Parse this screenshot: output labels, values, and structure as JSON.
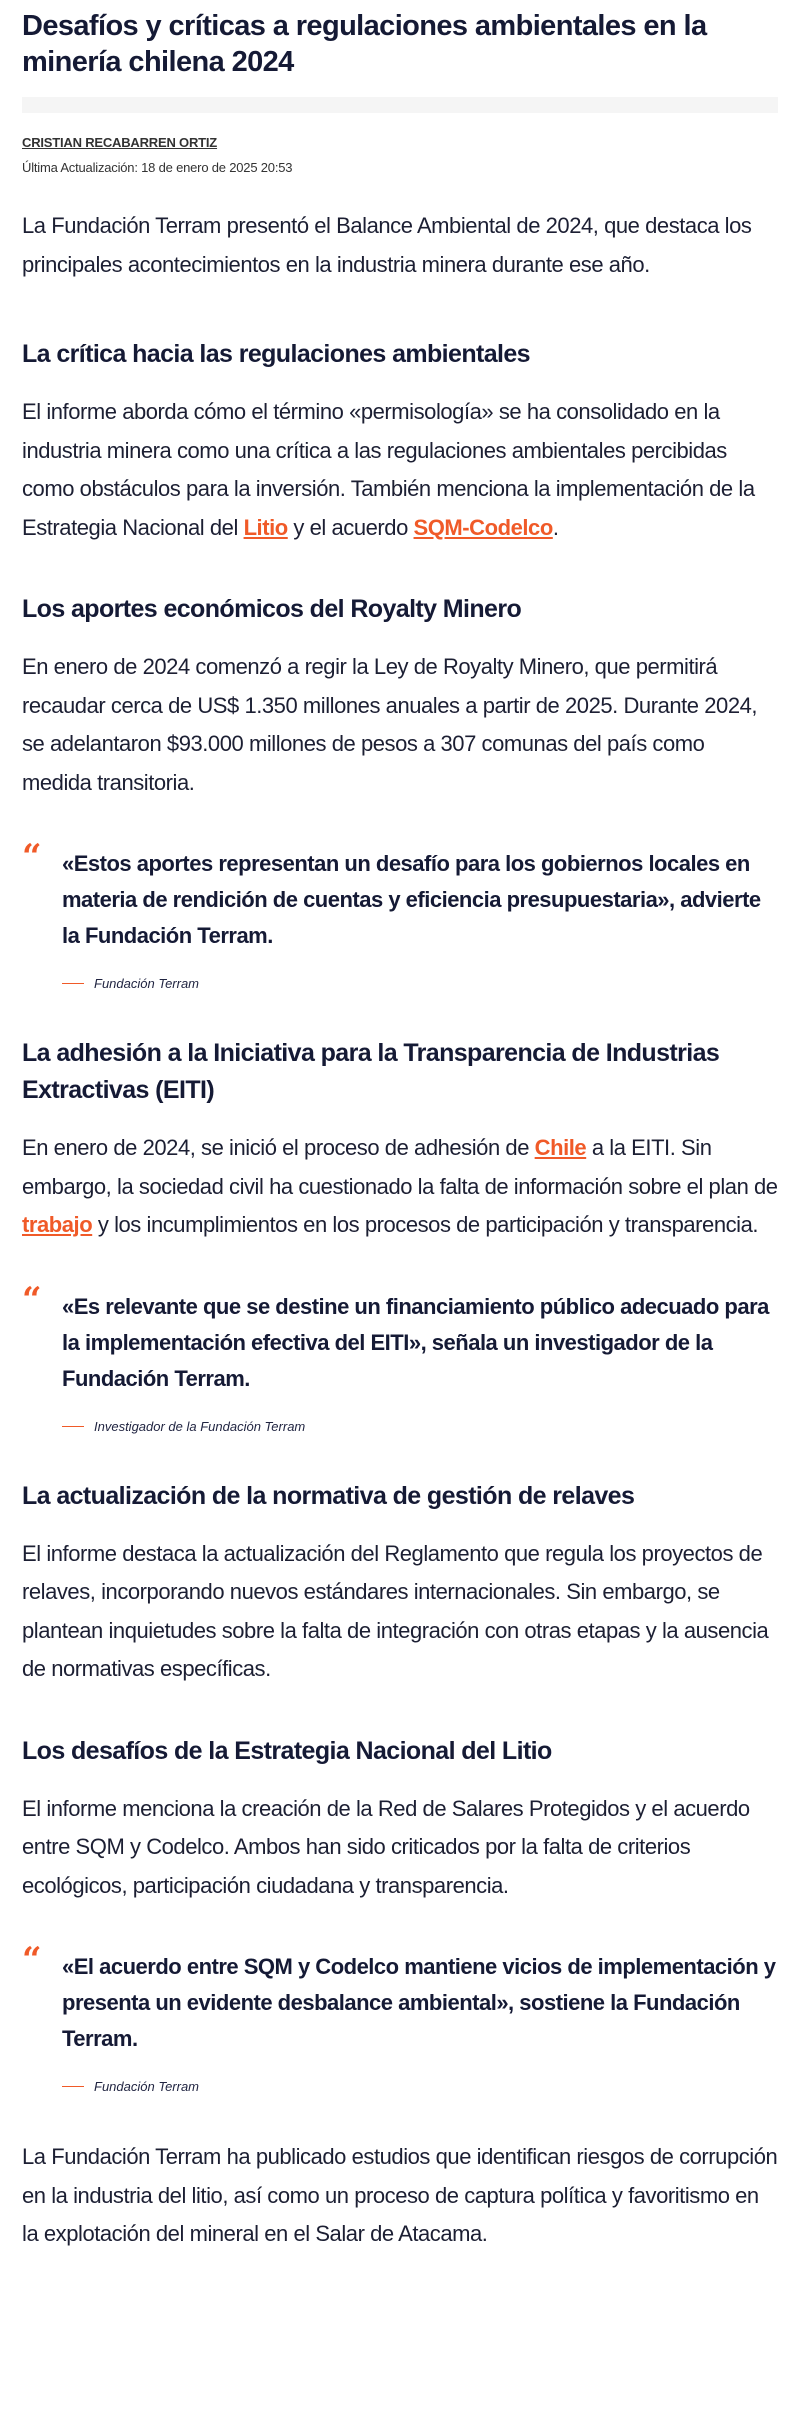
{
  "article": {
    "title": "Desafíos y críticas a regulaciones ambientales en la minería chilena 2024",
    "author": "CRISTIAN RECABARREN ORTIZ",
    "updated": "Última Actualización: 18 de enero de 2025 20:53",
    "intro": "La Fundación Terram presentó el Balance Ambiental de 2024, que destaca los principales acontecimientos en la industria minera durante ese año.",
    "s1": {
      "heading": "La crítica hacia las regulaciones ambientales",
      "p_a": "El informe aborda cómo el término «permisología» se ha consolidado en la industria minera como una crítica a las regulaciones ambientales percibidas como obstáculos para la inversión. También menciona la implementación de la Estrategia Nacional del ",
      "link1": "Litio",
      "p_b": " y el acuerdo ",
      "link2": "SQM-Codelco",
      "p_c": "."
    },
    "s2": {
      "heading": "Los aportes económicos del Royalty Minero",
      "p": "En enero de 2024 comenzó a regir la Ley de Royalty Minero, que permitirá recaudar cerca de US$ 1.350 millones anuales a partir de 2025. Durante 2024, se adelantaron $93.000 millones de pesos a 307 comunas del país como medida transitoria.",
      "quote": "«Estos aportes representan un desafío para los gobiernos locales en materia de rendición de cuentas y eficiencia presupuestaria», advierte la Fundación Terram.",
      "cite": "Fundación Terram"
    },
    "s3": {
      "heading": "La adhesión a la Iniciativa para la Transparencia de Industrias Extractivas (EITI)",
      "p_a": "En enero de 2024, se inició el proceso de adhesión de ",
      "link1": "Chile",
      "p_b": " a la EITI. Sin embargo, la sociedad civil ha cuestionado la falta de información sobre el plan de ",
      "link2": "trabajo",
      "p_c": " y los incumplimientos en los procesos de participación y transparencia.",
      "quote": "«Es relevante que se destine un financiamiento público adecuado para la implementación efectiva del EITI», señala un investigador de la Fundación Terram.",
      "cite": "Investigador de la Fundación Terram"
    },
    "s4": {
      "heading": "La actualización de la normativa de gestión de relaves",
      "p": "El informe destaca la actualización del Reglamento que regula los proyectos de relaves, incorporando nuevos estándares internacionales. Sin embargo, se plantean inquietudes sobre la falta de integración con otras etapas y la ausencia de normativas específicas."
    },
    "s5": {
      "heading": "Los desafíos de la Estrategia Nacional del Litio",
      "p": "El informe menciona la creación de la Red de Salares Protegidos y el acuerdo entre SQM y Codelco. Ambos han sido criticados por la falta de criterios ecológicos, participación ciudadana y transparencia.",
      "quote": "«El acuerdo entre SQM y Codelco mantiene vicios de implementación y presenta un evidente desbalance ambiental», sostiene la Fundación Terram.",
      "cite": "Fundación Terram",
      "closing": "La Fundación Terram ha publicado estudios que identifican riesgos de corrupción en la industria del litio, así como un proceso de captura política y favoritismo en la explotación del mineral en el Salar de Atacama."
    }
  },
  "colors": {
    "accent": "#f05a28",
    "text": "#151a35",
    "bar": "#f5f5f5"
  },
  "icons": {
    "quote": "quote-mark-icon"
  }
}
